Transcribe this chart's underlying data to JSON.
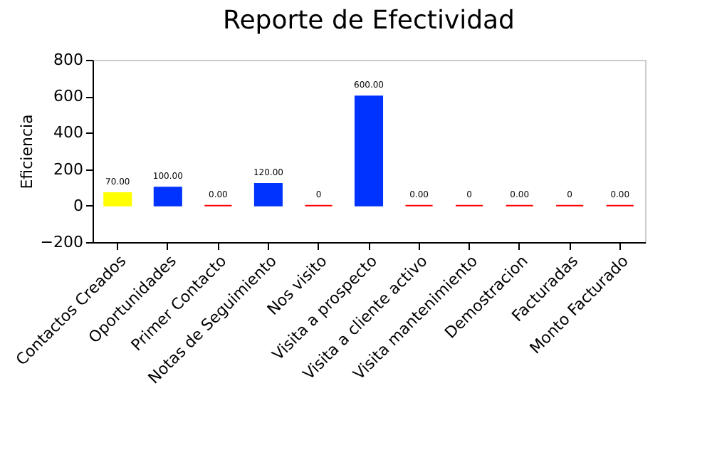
{
  "chart_data": {
    "type": "bar",
    "title": "Reporte de Efectividad",
    "ylabel": "Eficiencia",
    "categories": [
      "Contactos Creados",
      "Oportunidades",
      "Primer Contacto",
      "Notas de Seguimiento",
      "Nos visito",
      "Visita a prospecto",
      "Visita a cliente activo",
      "Visita mantenimiento",
      "Demostracion",
      "Facturadas",
      "Monto Facturado"
    ],
    "values": [
      70,
      100,
      0,
      120,
      0,
      600,
      0,
      0,
      0,
      0,
      0
    ],
    "colors": [
      "#ffff00",
      "#0033ff",
      "#ff0000",
      "#0033ff",
      "#ff0000",
      "#0033ff",
      "#ff0000",
      "#ff0000",
      "#ff0000",
      "#ff0000",
      "#ff0000"
    ],
    "value_labels": [
      "70.00",
      "100.00",
      "0.00",
      "120.00",
      "0",
      "600.00",
      "0.00",
      "0",
      "0.00",
      "0",
      "0.00"
    ],
    "ylim": [
      -200,
      800
    ],
    "yticks": [
      -200,
      0,
      200,
      400,
      600,
      800
    ],
    "grid": false
  }
}
